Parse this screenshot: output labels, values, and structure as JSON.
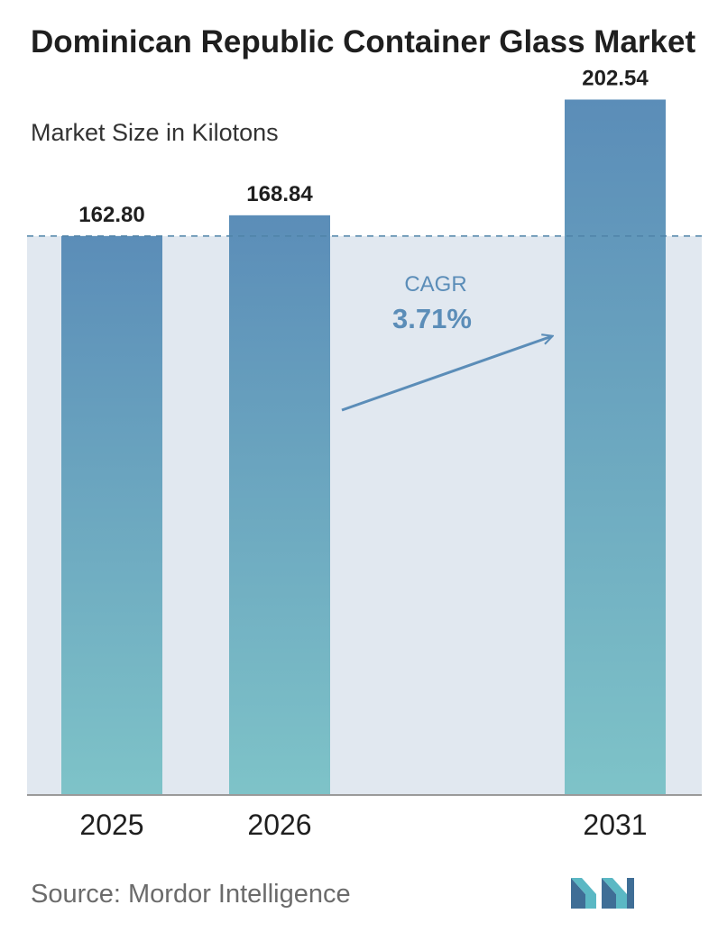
{
  "title": "Dominican Republic Container Glass Market",
  "subtitle": "Market Size in Kilotons",
  "source": "Source:  Mordor Intelligence",
  "logo_name": "mordor-intelligence-logo",
  "colors": {
    "bar_top": "#5b8db8",
    "bar_bottom": "#7ec3c8",
    "band": "#e1e8f0",
    "dashed": "#4f83a8",
    "cagr": "#5b8db8",
    "axis": "#9a9a9a",
    "logo_dark": "#3f6e96",
    "logo_light": "#5bb8c4"
  },
  "chart_data": {
    "type": "bar",
    "categories": [
      "2025",
      "2026",
      "2031"
    ],
    "values": [
      162.8,
      168.84,
      202.54
    ],
    "value_labels": [
      "162.80",
      "168.84",
      "202.54"
    ],
    "title": "Dominican Republic Container Glass Market",
    "subtitle": "Market Size in Kilotons",
    "xlabel": "",
    "ylabel": "",
    "ylim": [
      0,
      215
    ],
    "grid": false,
    "reference_line": 162.8,
    "annotation": {
      "label": "CAGR",
      "value": "3.71%"
    }
  }
}
